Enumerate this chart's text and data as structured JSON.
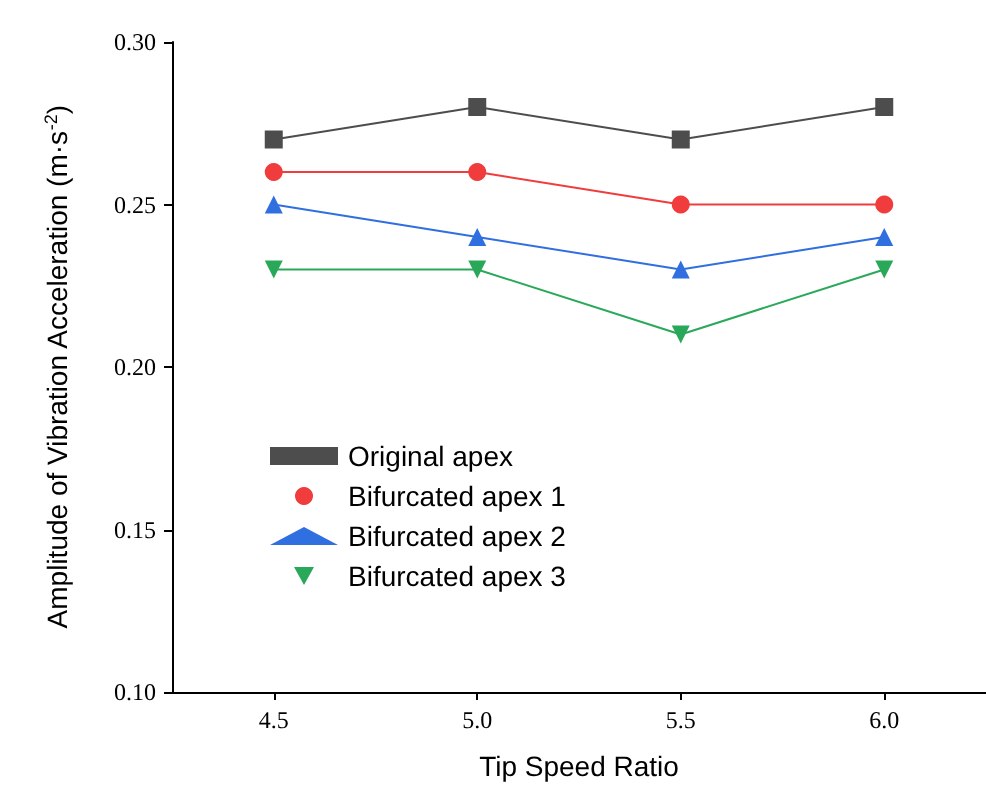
{
  "chart_data": {
    "type": "line",
    "xlabel": "Tip Speed Ratio",
    "ylabel": "Amplitude of Vibration Acceleration (m·s$^{-2}$)",
    "x": [
      4.5,
      5.0,
      5.5,
      6.0
    ],
    "xlim": [
      4.25,
      6.25
    ],
    "xticks": [
      {
        "value": 4.5,
        "label": "4.5"
      },
      {
        "value": 5.0,
        "label": "5.0"
      },
      {
        "value": 5.5,
        "label": "5.5"
      },
      {
        "value": 6.0,
        "label": "6.0"
      }
    ],
    "ylim": [
      0.1,
      0.3
    ],
    "yticks": [
      {
        "value": 0.1,
        "label": "0.10"
      },
      {
        "value": 0.15,
        "label": "0.15"
      },
      {
        "value": 0.2,
        "label": "0.20"
      },
      {
        "value": 0.25,
        "label": "0.25"
      },
      {
        "value": 0.3,
        "label": "0.30"
      }
    ],
    "series": [
      {
        "name": "Original apex",
        "color": "#4d4d4d",
        "marker": "square",
        "values": [
          0.27,
          0.28,
          0.27,
          0.28
        ]
      },
      {
        "name": "Bifurcated apex 1",
        "color": "#f03c3c",
        "marker": "circle",
        "values": [
          0.26,
          0.26,
          0.25,
          0.25
        ]
      },
      {
        "name": "Bifurcated apex 2",
        "color": "#2f6fe0",
        "marker": "triangle",
        "values": [
          0.25,
          0.24,
          0.23,
          0.24
        ]
      },
      {
        "name": "Bifurcated apex 3",
        "color": "#2aa85a",
        "marker": "triangle-down",
        "values": [
          0.23,
          0.23,
          0.21,
          0.23
        ]
      }
    ],
    "legend": "bottom left",
    "grid": false,
    "line_style": "solid"
  }
}
